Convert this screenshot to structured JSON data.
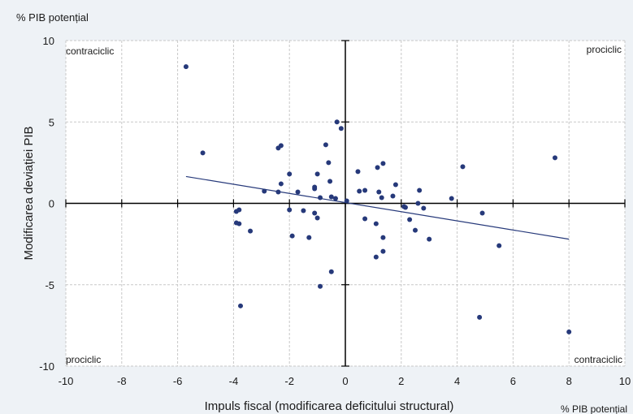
{
  "chart_data": {
    "type": "scatter",
    "y_unit_label": "% PIB potențial",
    "x_unit_label": "% PIB potențial",
    "xlabel": "Impuls fiscal (modificarea deficitului structural)",
    "ylabel": "Modificarea deviației PIB",
    "xlim": [
      -10,
      10
    ],
    "ylim": [
      -10,
      10
    ],
    "x_ticks": [
      "-10",
      "-8",
      "-6",
      "-4",
      "-2",
      "0",
      "2",
      "4",
      "6",
      "8",
      "10"
    ],
    "y_ticks": [
      "10",
      "5",
      "0",
      "-5",
      "-10"
    ],
    "grid": true,
    "quadrant_labels": {
      "top_left": "contraciclic",
      "top_right": "prociclic",
      "bottom_left": "prociclic",
      "bottom_right": "contraciclic"
    },
    "colors": {
      "points": "#26397a",
      "trend": "#26397a",
      "axes": "#000000",
      "grid": "#c8c8c8"
    },
    "points": [
      [
        -5.7,
        8.4
      ],
      [
        -5.1,
        3.1
      ],
      [
        -2.4,
        3.4
      ],
      [
        -2.3,
        3.55
      ],
      [
        -0.7,
        3.6
      ],
      [
        -0.3,
        5.0
      ],
      [
        -0.15,
        4.6
      ],
      [
        -2.9,
        0.75
      ],
      [
        -2.4,
        0.7
      ],
      [
        -2.3,
        1.2
      ],
      [
        -2.0,
        1.8
      ],
      [
        -1.7,
        0.7
      ],
      [
        -1.1,
        0.9
      ],
      [
        -1.1,
        1.0
      ],
      [
        -1.0,
        1.8
      ],
      [
        -0.6,
        2.5
      ],
      [
        -0.55,
        1.35
      ],
      [
        -0.9,
        0.35
      ],
      [
        -0.5,
        0.4
      ],
      [
        -0.35,
        0.3
      ],
      [
        0.05,
        0.15
      ],
      [
        0.45,
        1.95
      ],
      [
        0.5,
        0.75
      ],
      [
        0.7,
        0.8
      ],
      [
        1.15,
        2.2
      ],
      [
        1.2,
        0.7
      ],
      [
        1.35,
        2.45
      ],
      [
        1.3,
        0.35
      ],
      [
        1.7,
        0.45
      ],
      [
        1.8,
        1.15
      ],
      [
        2.65,
        0.8
      ],
      [
        2.1,
        -0.2
      ],
      [
        2.15,
        -0.25
      ],
      [
        2.8,
        -0.3
      ],
      [
        2.6,
        0.0
      ],
      [
        3.8,
        0.3
      ],
      [
        4.2,
        2.25
      ],
      [
        7.5,
        2.8
      ],
      [
        -3.9,
        -0.5
      ],
      [
        -3.8,
        -0.4
      ],
      [
        -3.9,
        -1.2
      ],
      [
        -3.8,
        -1.25
      ],
      [
        -3.4,
        -1.7
      ],
      [
        -2.0,
        -0.4
      ],
      [
        -1.9,
        -2.0
      ],
      [
        -1.5,
        -0.45
      ],
      [
        -1.3,
        -2.1
      ],
      [
        -1.1,
        -0.6
      ],
      [
        -1.0,
        -0.9
      ],
      [
        0.7,
        -0.95
      ],
      [
        1.1,
        -1.25
      ],
      [
        2.3,
        -1.0
      ],
      [
        2.5,
        -1.65
      ],
      [
        1.35,
        -2.1
      ],
      [
        3.0,
        -2.2
      ],
      [
        4.9,
        -0.6
      ],
      [
        5.5,
        -2.6
      ],
      [
        1.35,
        -2.95
      ],
      [
        1.1,
        -3.3
      ],
      [
        -0.5,
        -4.2
      ],
      [
        -0.9,
        -5.1
      ],
      [
        -3.75,
        -6.3
      ],
      [
        4.8,
        -7.0
      ],
      [
        8.0,
        -7.9
      ]
    ],
    "trendline": {
      "x": [
        -5.7,
        8.0
      ],
      "y": [
        1.65,
        -2.2
      ]
    }
  }
}
